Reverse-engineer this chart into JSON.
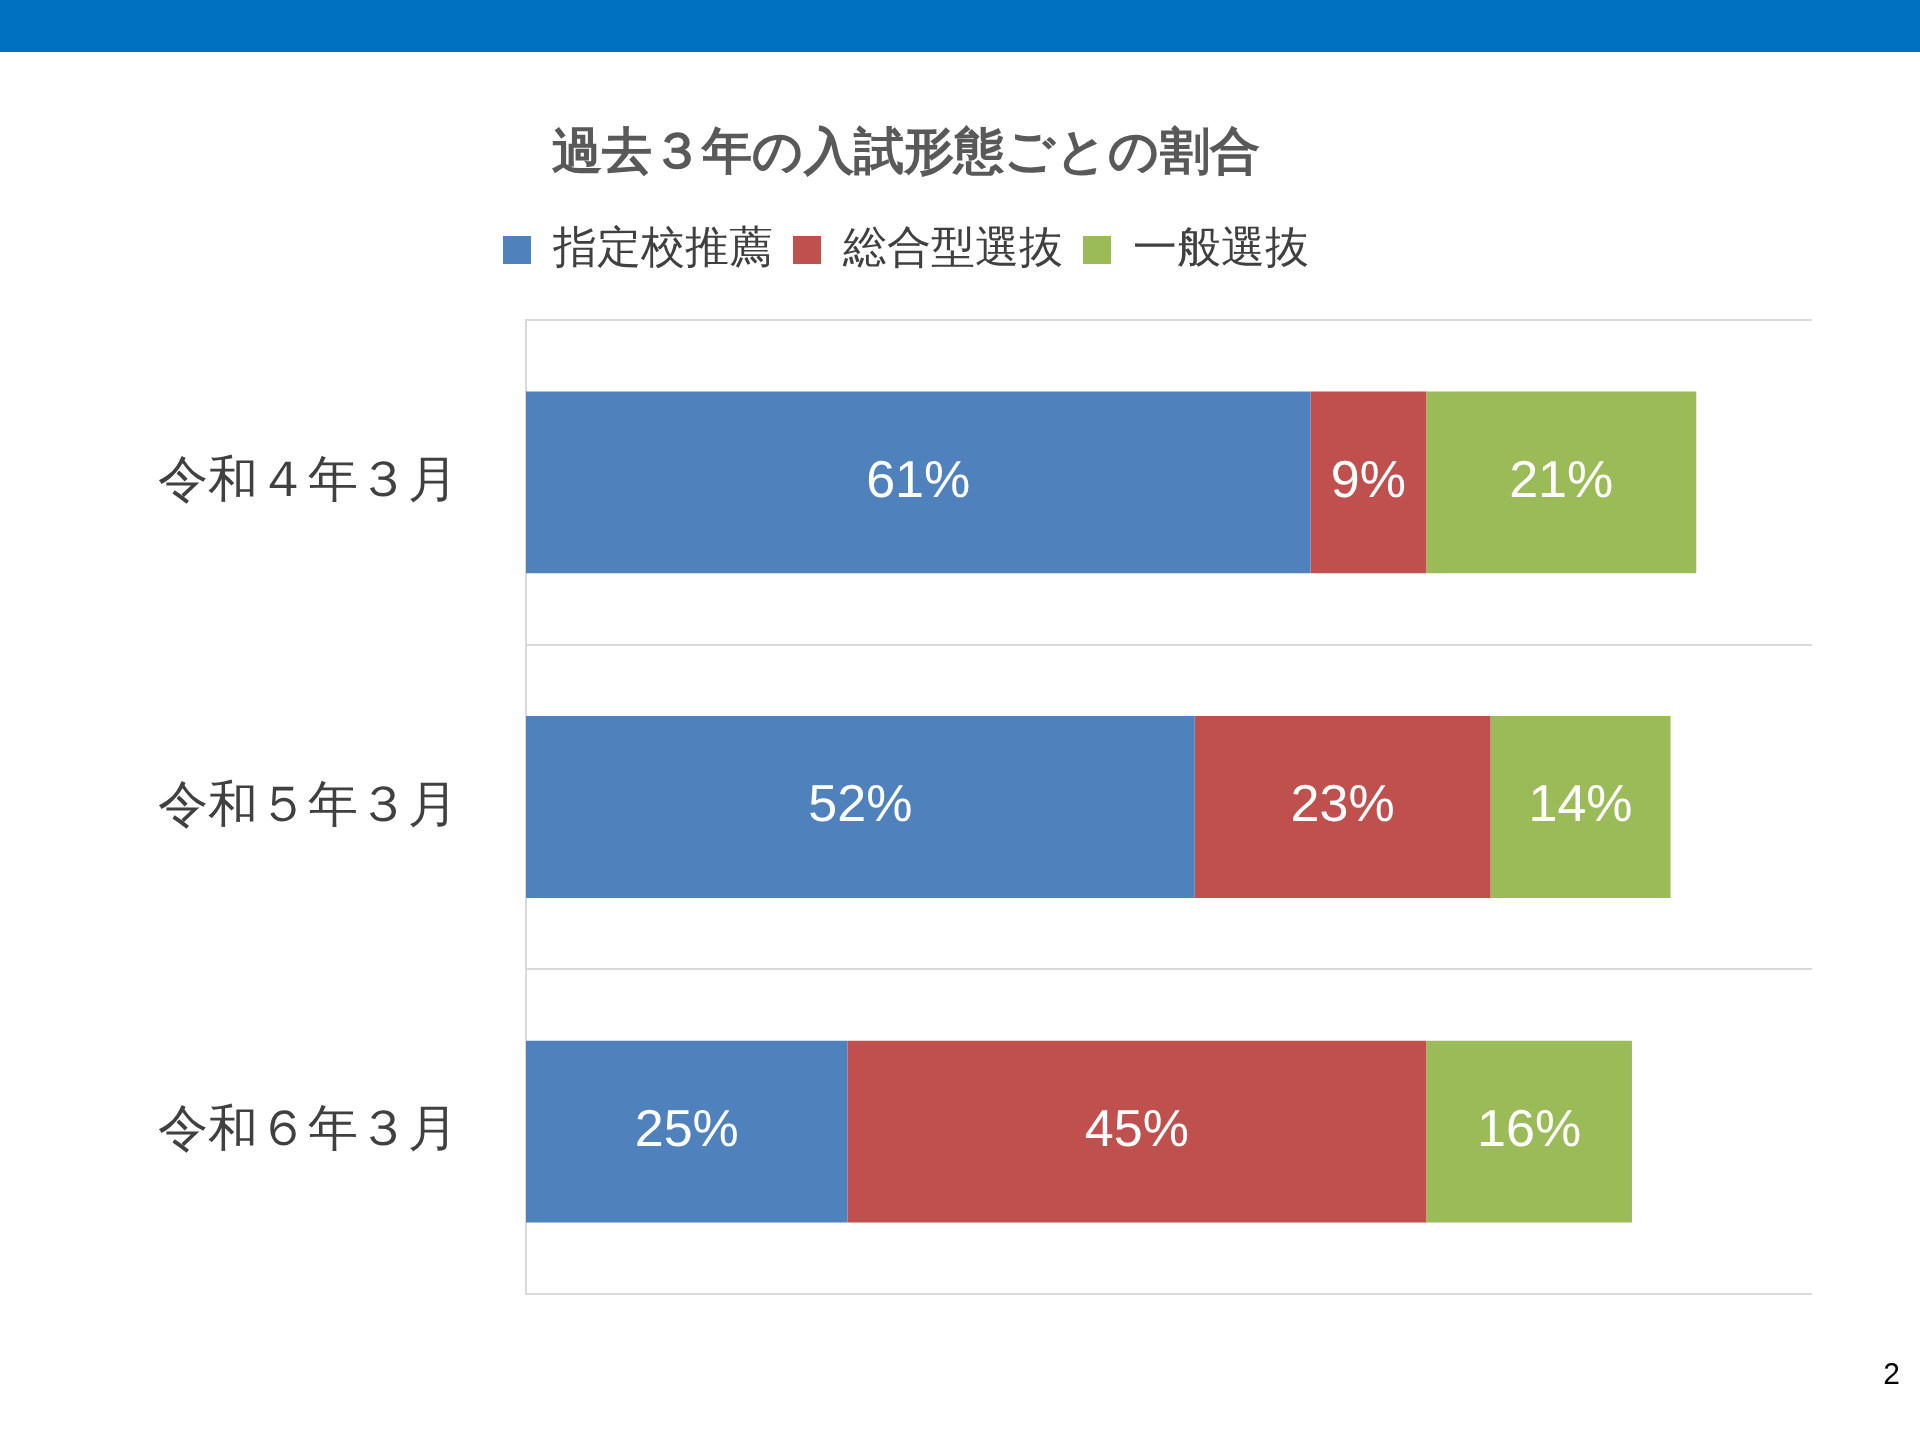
{
  "chart_data": {
    "type": "bar",
    "orientation": "horizontal",
    "stacked": true,
    "title": "過去３年の入試形態ごとの割合",
    "categories": [
      "令和４年３月",
      "令和５年３月",
      "令和６年３月"
    ],
    "series": [
      {
        "name": "指定校推薦",
        "color": "#4f81bd",
        "values": [
          61,
          52,
          25
        ],
        "value_labels": [
          "61%",
          "52%",
          "25%"
        ]
      },
      {
        "name": "総合型選抜",
        "color": "#c0504d",
        "values": [
          9,
          23,
          45
        ],
        "value_labels": [
          "9%",
          "23%",
          "45%"
        ]
      },
      {
        "name": "一般選抜",
        "color": "#9bbb59",
        "values": [
          21,
          14,
          16
        ],
        "value_labels": [
          "21%",
          "14%",
          "16%"
        ]
      }
    ],
    "xlim": [
      0,
      100
    ],
    "tick_labels": "y",
    "grid": "y",
    "legend": "top",
    "annotations": [
      "2"
    ]
  }
}
